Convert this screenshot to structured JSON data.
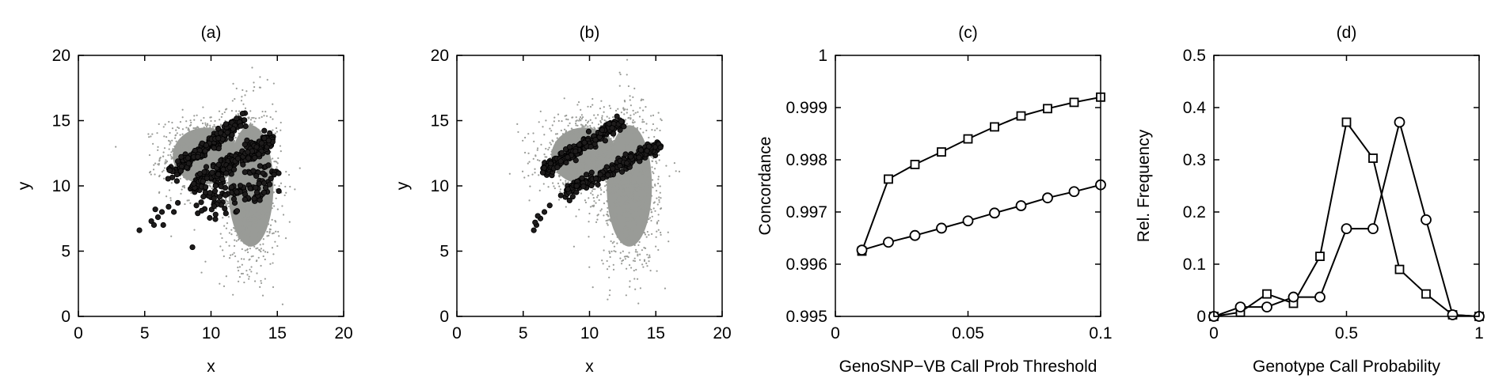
{
  "chart_data": [
    {
      "type": "scatter",
      "title": "(a)",
      "xlabel": "x",
      "ylabel": "y",
      "xlim": [
        0,
        20
      ],
      "ylim": [
        0,
        20
      ],
      "xticks": [
        "0",
        "5",
        "10",
        "15",
        "20"
      ],
      "yticks": [
        "0",
        "5",
        "10",
        "15",
        "20"
      ],
      "background_colors": {
        "cloud": "#999b97",
        "points": "#1e1c1c"
      },
      "series": [
        {
          "name": "background",
          "clusters": [
            {
              "center": [
                9.6,
                12.3
              ],
              "spread": [
                1.6,
                1.4
              ],
              "n": 900
            },
            {
              "center": [
                13.0,
                10.0
              ],
              "spread": [
                1.1,
                3.0
              ],
              "n": 900
            }
          ]
        },
        {
          "name": "points",
          "points": [
            [
              4.6,
              6.6
            ],
            [
              5.5,
              7.3
            ],
            [
              5.7,
              7.0
            ],
            [
              6.0,
              7.6
            ],
            [
              5.8,
              8.2
            ],
            [
              6.3,
              8.0
            ],
            [
              6.8,
              8.4
            ],
            [
              6.4,
              7.0
            ],
            [
              7.5,
              8.7
            ],
            [
              7.2,
              8.0
            ],
            [
              8.6,
              5.3
            ],
            [
              8.9,
              8.5
            ],
            [
              9.0,
              7.9
            ],
            [
              9.3,
              8.1
            ]
          ],
          "bands": [
            {
              "from": [
                7.0,
                10.9
              ],
              "to": [
                12.4,
                15.1
              ],
              "width": 0.8,
              "n": 200
            },
            {
              "from": [
                8.5,
                9.8
              ],
              "to": [
                14.6,
                13.6
              ],
              "width": 1.0,
              "n": 220
            },
            {
              "from": [
                9.3,
                8.8
              ],
              "to": [
                15.0,
                10.8
              ],
              "width": 2.6,
              "n": 120
            }
          ]
        }
      ]
    },
    {
      "type": "scatter",
      "title": "(b)",
      "xlabel": "x",
      "ylabel": "y",
      "xlim": [
        0,
        20
      ],
      "ylim": [
        0,
        20
      ],
      "xticks": [
        "0",
        "5",
        "10",
        "15",
        "20"
      ],
      "yticks": [
        "0",
        "5",
        "10",
        "15",
        "20"
      ],
      "series": [
        {
          "name": "background",
          "clusters": [
            {
              "center": [
                9.6,
                12.3
              ],
              "spread": [
                1.6,
                1.4
              ],
              "n": 900
            },
            {
              "center": [
                13.0,
                10.0
              ],
              "spread": [
                1.1,
                3.0
              ],
              "n": 900
            }
          ]
        },
        {
          "name": "points",
          "points": [
            [
              5.8,
              6.6
            ],
            [
              6.0,
              7.0
            ],
            [
              6.3,
              7.5
            ],
            [
              6.6,
              8.0
            ],
            [
              6.1,
              7.7
            ],
            [
              7.0,
              8.5
            ],
            [
              5.9,
              7.2
            ]
          ],
          "bands": [
            {
              "from": [
                6.5,
                11.2
              ],
              "to": [
                12.4,
                15.0
              ],
              "width": 0.7,
              "n": 230
            },
            {
              "from": [
                8.0,
                9.4
              ],
              "to": [
                15.3,
                13.1
              ],
              "width": 0.7,
              "n": 200
            }
          ]
        }
      ]
    },
    {
      "type": "line",
      "title": "(c)",
      "xlabel": "GenoSNP−VB Call Prob Threshold",
      "ylabel": "Concordance",
      "xlim": [
        0,
        0.1
      ],
      "ylim": [
        0.995,
        1.0
      ],
      "xticks": [
        "0",
        "0.05",
        "0.1"
      ],
      "yticks": [
        "0.995",
        "0.996",
        "0.997",
        "0.998",
        "0.999",
        "1"
      ],
      "x": [
        0.01,
        0.02,
        0.03,
        0.04,
        0.05,
        0.06,
        0.07,
        0.08,
        0.09,
        0.1
      ],
      "series": [
        {
          "name": "squares",
          "marker": "square",
          "values": [
            0.99625,
            0.99763,
            0.99791,
            0.99815,
            0.9984,
            0.99863,
            0.99884,
            0.99898,
            0.9991,
            0.9992
          ]
        },
        {
          "name": "circles",
          "marker": "circle",
          "values": [
            0.99627,
            0.99642,
            0.99655,
            0.99669,
            0.99683,
            0.99698,
            0.99712,
            0.99727,
            0.99739,
            0.99752
          ]
        }
      ]
    },
    {
      "type": "line",
      "title": "(d)",
      "xlabel": "Genotype Call Probability",
      "ylabel": "Rel. Frequency",
      "xlim": [
        0,
        1
      ],
      "ylim": [
        0,
        0.5
      ],
      "xticks": [
        "0",
        "0.5",
        "1"
      ],
      "yticks": [
        "0",
        "0.1",
        "0.2",
        "0.3",
        "0.4",
        "0.5"
      ],
      "x": [
        0,
        0.1,
        0.2,
        0.3,
        0.4,
        0.5,
        0.6,
        0.7,
        0.8,
        0.9,
        1.0
      ],
      "series": [
        {
          "name": "squares",
          "marker": "square",
          "values": [
            0,
            0.008,
            0.043,
            0.025,
            0.115,
            0.372,
            0.303,
            0.09,
            0.043,
            0.003,
            0
          ]
        },
        {
          "name": "circles",
          "marker": "circle",
          "values": [
            0,
            0.018,
            0.018,
            0.037,
            0.037,
            0.168,
            0.168,
            0.372,
            0.185,
            0.003,
            0
          ]
        }
      ]
    }
  ]
}
